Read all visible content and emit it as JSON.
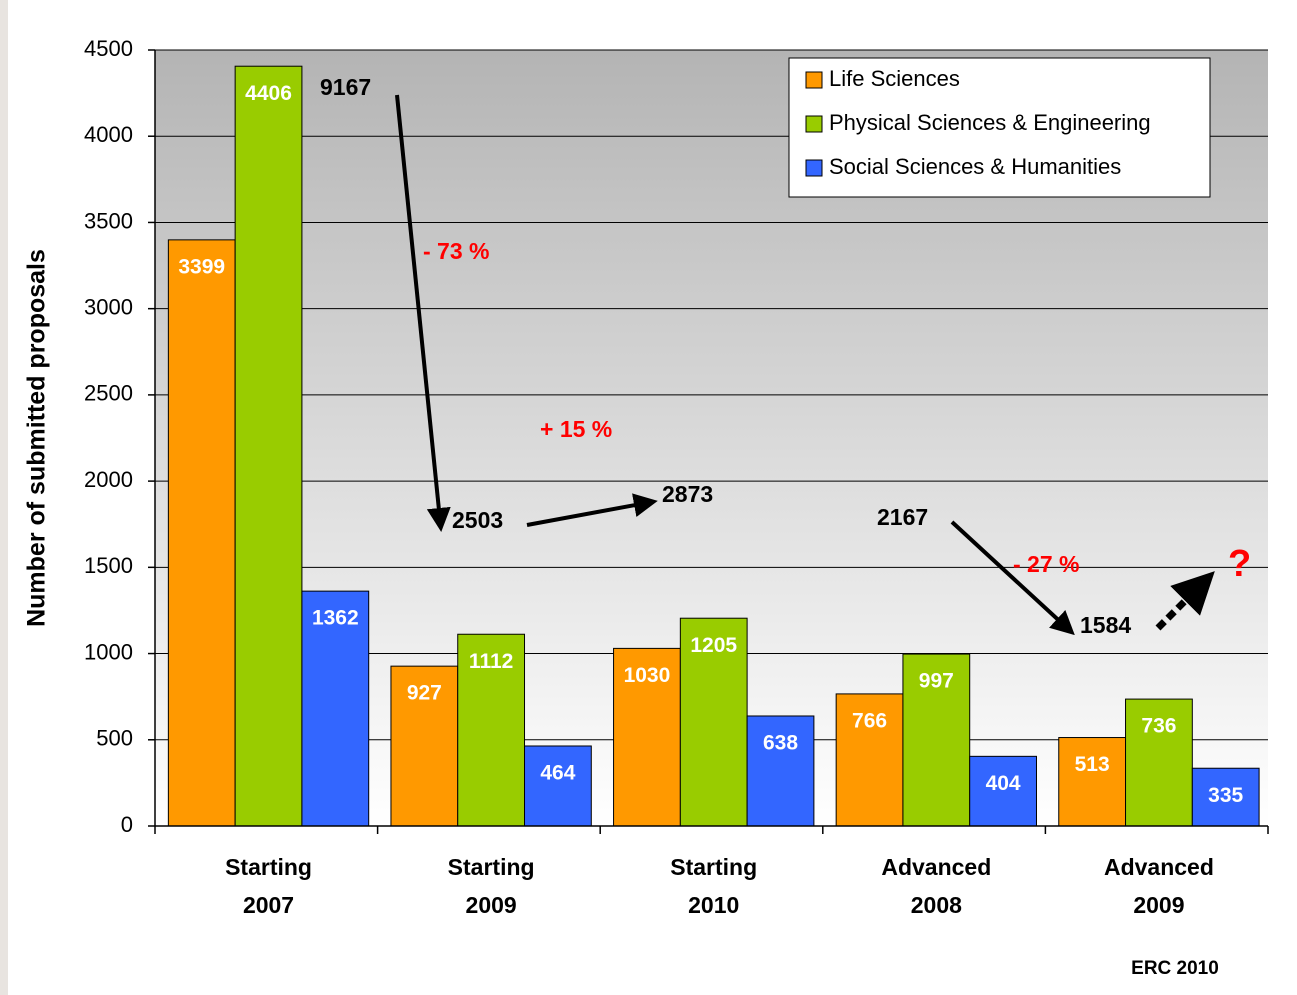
{
  "chart_data": {
    "type": "bar",
    "ylabel": "Number of submitted proposals",
    "categories": [
      "Starting 2007",
      "Starting 2009",
      "Starting 2010",
      "Advanced 2008",
      "Advanced 2009"
    ],
    "series": [
      {
        "name": "Life Sciences",
        "color": "#ff9900",
        "values": [
          3399,
          927,
          1030,
          766,
          513
        ]
      },
      {
        "name": "Physical Sciences & Engineering",
        "color": "#99cc00",
        "values": [
          4406,
          1112,
          1205,
          997,
          736
        ]
      },
      {
        "name": "Social Sciences & Humanities",
        "color": "#3366ff",
        "values": [
          1362,
          464,
          638,
          404,
          335
        ]
      }
    ],
    "ylim": [
      0,
      4500
    ],
    "yticks": [
      0,
      500,
      1000,
      1500,
      2000,
      2500,
      3000,
      3500,
      4000,
      4500
    ],
    "grid": true,
    "legend": "upper right",
    "annotations": [
      "9167",
      "- 73 %",
      "+ 15 %",
      "2503",
      "2873",
      "2167",
      "- 27 %",
      "1584",
      "?"
    ],
    "source": "ERC 2010"
  }
}
